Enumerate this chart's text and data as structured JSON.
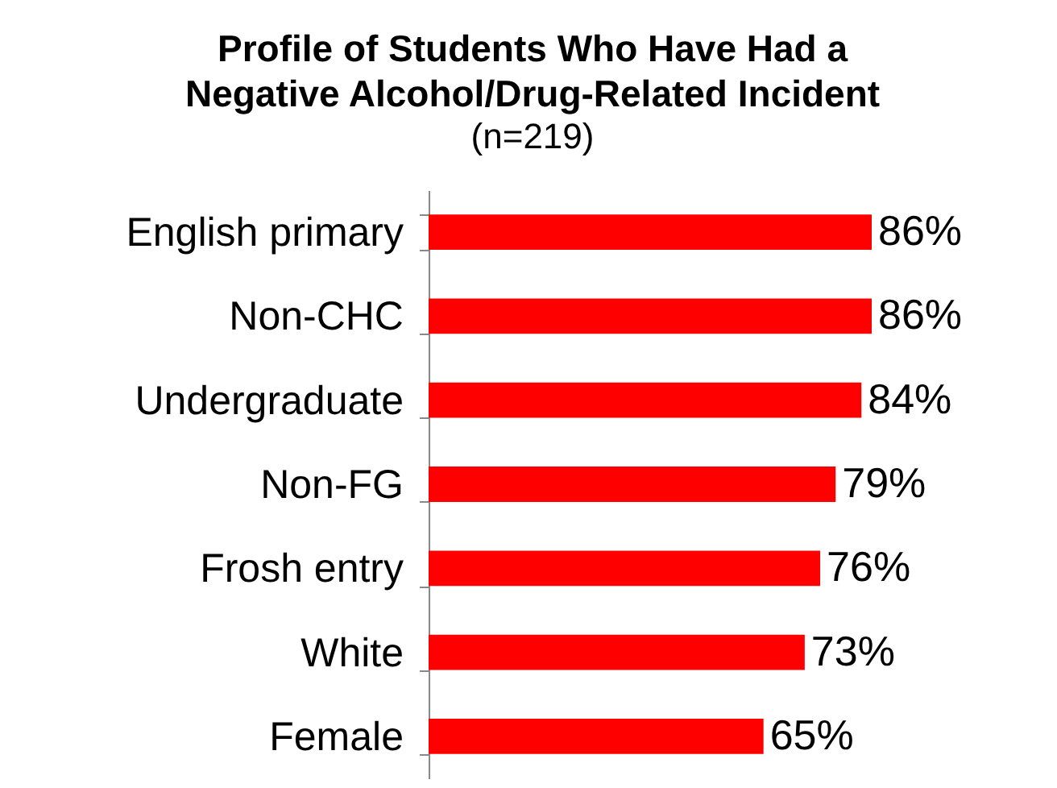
{
  "chart_data": {
    "type": "bar",
    "orientation": "horizontal",
    "title": "Profile of Students Who Have Had a Negative Alcohol/Drug-Related Incident",
    "subtitle": "(n=219)",
    "categories": [
      "English primary",
      "Non-CHC",
      "Undergraduate",
      "Non-FG",
      "Frosh entry",
      "White",
      "Female"
    ],
    "values": [
      86,
      86,
      84,
      79,
      76,
      73,
      65
    ],
    "value_labels": [
      "86%",
      "86%",
      "84%",
      "79%",
      "76%",
      "73%",
      "65%"
    ],
    "color": "#ff0000",
    "tick_labels": "y"
  }
}
